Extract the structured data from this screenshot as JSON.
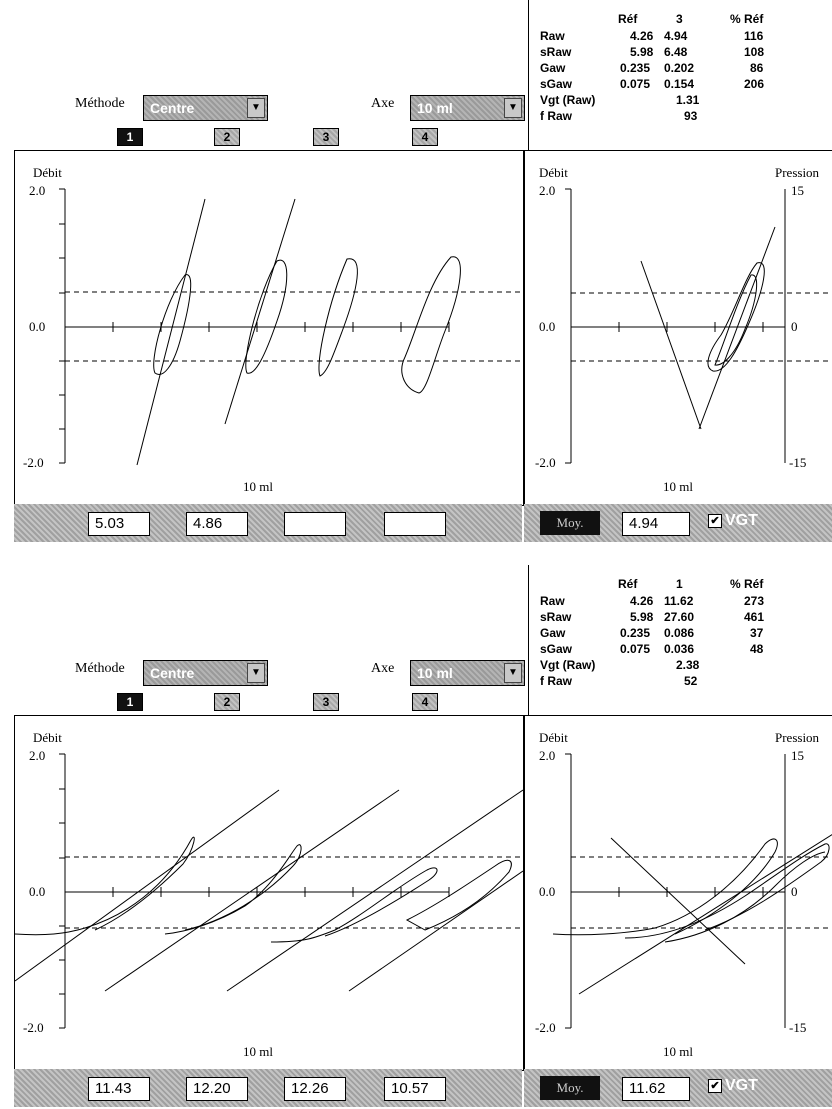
{
  "panels": [
    {
      "controls": {
        "methode_label": "Méthode",
        "methode_value": "Centre",
        "axe_label": "Axe",
        "axe_value": "10 ml"
      },
      "tabs": [
        "1",
        "2",
        "3",
        "4"
      ],
      "stats": {
        "header": [
          "Réf",
          "3",
          "% Réf"
        ],
        "rows": [
          {
            "label": "Raw",
            "ref": "4.26",
            "val": "4.94",
            "pct": "116"
          },
          {
            "label": "sRaw",
            "ref": "5.98",
            "val": "6.48",
            "pct": "108"
          },
          {
            "label": "Gaw",
            "ref": "0.235",
            "val": "0.202",
            "pct": "86"
          },
          {
            "label": "sGaw",
            "ref": "0.075",
            "val": "0.154",
            "pct": "206"
          },
          {
            "label": "Vgt (Raw)",
            "ref": "",
            "val": "1.31",
            "pct": ""
          },
          {
            "label": "f Raw",
            "ref": "",
            "val": "93",
            "pct": ""
          }
        ]
      },
      "left_plot": {
        "ylabel": "Débit",
        "ticks": [
          "2.0",
          "0.0",
          "-2.0"
        ],
        "xlabel": "10 ml"
      },
      "right_plot": {
        "ylabel": "Débit",
        "ylabel_right": "Pression",
        "ticks": [
          "2.0",
          "0.0",
          "-2.0"
        ],
        "ticks_right": [
          "15",
          "0",
          "-15"
        ],
        "xlabel": "10 ml"
      },
      "bottom": {
        "values": [
          "5.03",
          "4.86",
          "",
          ""
        ],
        "moy_label": "Moy.",
        "moy_value": "4.94",
        "vgt_label": "VGT"
      }
    },
    {
      "controls": {
        "methode_label": "Méthode",
        "methode_value": "Centre",
        "axe_label": "Axe",
        "axe_value": "10 ml"
      },
      "tabs": [
        "1",
        "2",
        "3",
        "4"
      ],
      "stats": {
        "header": [
          "Réf",
          "1",
          "% Réf"
        ],
        "rows": [
          {
            "label": "Raw",
            "ref": "4.26",
            "val": "11.62",
            "pct": "273"
          },
          {
            "label": "sRaw",
            "ref": "5.98",
            "val": "27.60",
            "pct": "461"
          },
          {
            "label": "Gaw",
            "ref": "0.235",
            "val": "0.086",
            "pct": "37"
          },
          {
            "label": "sGaw",
            "ref": "0.075",
            "val": "0.036",
            "pct": "48"
          },
          {
            "label": "Vgt (Raw)",
            "ref": "",
            "val": "2.38",
            "pct": ""
          },
          {
            "label": "f Raw",
            "ref": "",
            "val": "52",
            "pct": ""
          }
        ]
      },
      "left_plot": {
        "ylabel": "Débit",
        "ticks": [
          "2.0",
          "0.0",
          "-2.0"
        ],
        "xlabel": "10 ml"
      },
      "right_plot": {
        "ylabel": "Débit",
        "ylabel_right": "Pression",
        "ticks": [
          "2.0",
          "0.0",
          "-2.0"
        ],
        "ticks_right": [
          "15",
          "0",
          "-15"
        ],
        "xlabel": "10 ml"
      },
      "bottom": {
        "values": [
          "11.43",
          "12.20",
          "12.26",
          "10.57"
        ],
        "moy_label": "Moy.",
        "moy_value": "11.62",
        "vgt_label": "VGT"
      }
    }
  ]
}
